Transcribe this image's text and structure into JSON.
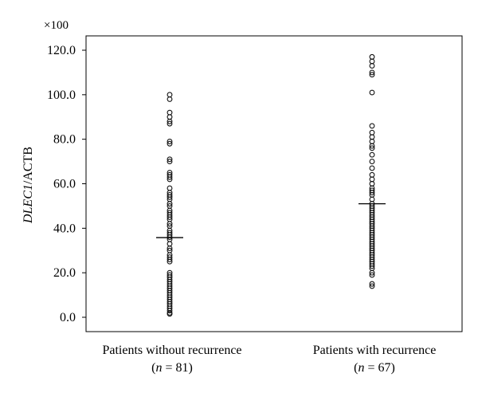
{
  "chart_data": {
    "type": "scatter",
    "title": "",
    "ylabel_italic": "DLEC1",
    "ylabel_rest": "/ACTB",
    "scale_note": "×100",
    "ylim": [
      -6,
      126
    ],
    "yticks": [
      "0.0",
      "20.0",
      "40.0",
      "60.0",
      "80.0",
      "100.0",
      "120.0"
    ],
    "grid": false,
    "categories": [
      {
        "line1": "Patients without recurrence",
        "n_var": "n",
        "n_rest": " = 81)"
      },
      {
        "line1": "Patients with recurrence",
        "n_var": "n",
        "n_rest": " = 67)"
      }
    ],
    "series": [
      {
        "category": "Patients without recurrence",
        "median": 35.8,
        "values": [
          100,
          98,
          92,
          90,
          88,
          87,
          79,
          78,
          71,
          70,
          65,
          64,
          63,
          62,
          58,
          56,
          55,
          54,
          53,
          51,
          50,
          48,
          47,
          46,
          45,
          44,
          42,
          41,
          39,
          38,
          37,
          36,
          35,
          33,
          31,
          30,
          28,
          27,
          26,
          25,
          20,
          19,
          18,
          17,
          16,
          15,
          14,
          13,
          12,
          11,
          10,
          9,
          8,
          7,
          6,
          5,
          4,
          3,
          2,
          1.5
        ]
      },
      {
        "category": "Patients with recurrence",
        "median": 51.0,
        "values": [
          117,
          115,
          113,
          110,
          109,
          101,
          86,
          83,
          81,
          79,
          77,
          76,
          73,
          70,
          67,
          64,
          62,
          60,
          58,
          57,
          56,
          55,
          53,
          51,
          50,
          49,
          48,
          47,
          46,
          45,
          44,
          43,
          42,
          41,
          40,
          39,
          38,
          37,
          36,
          35,
          34,
          33,
          32,
          31,
          30,
          29,
          28,
          27,
          26,
          25,
          24,
          23,
          22,
          20,
          19,
          15,
          14
        ]
      }
    ]
  }
}
